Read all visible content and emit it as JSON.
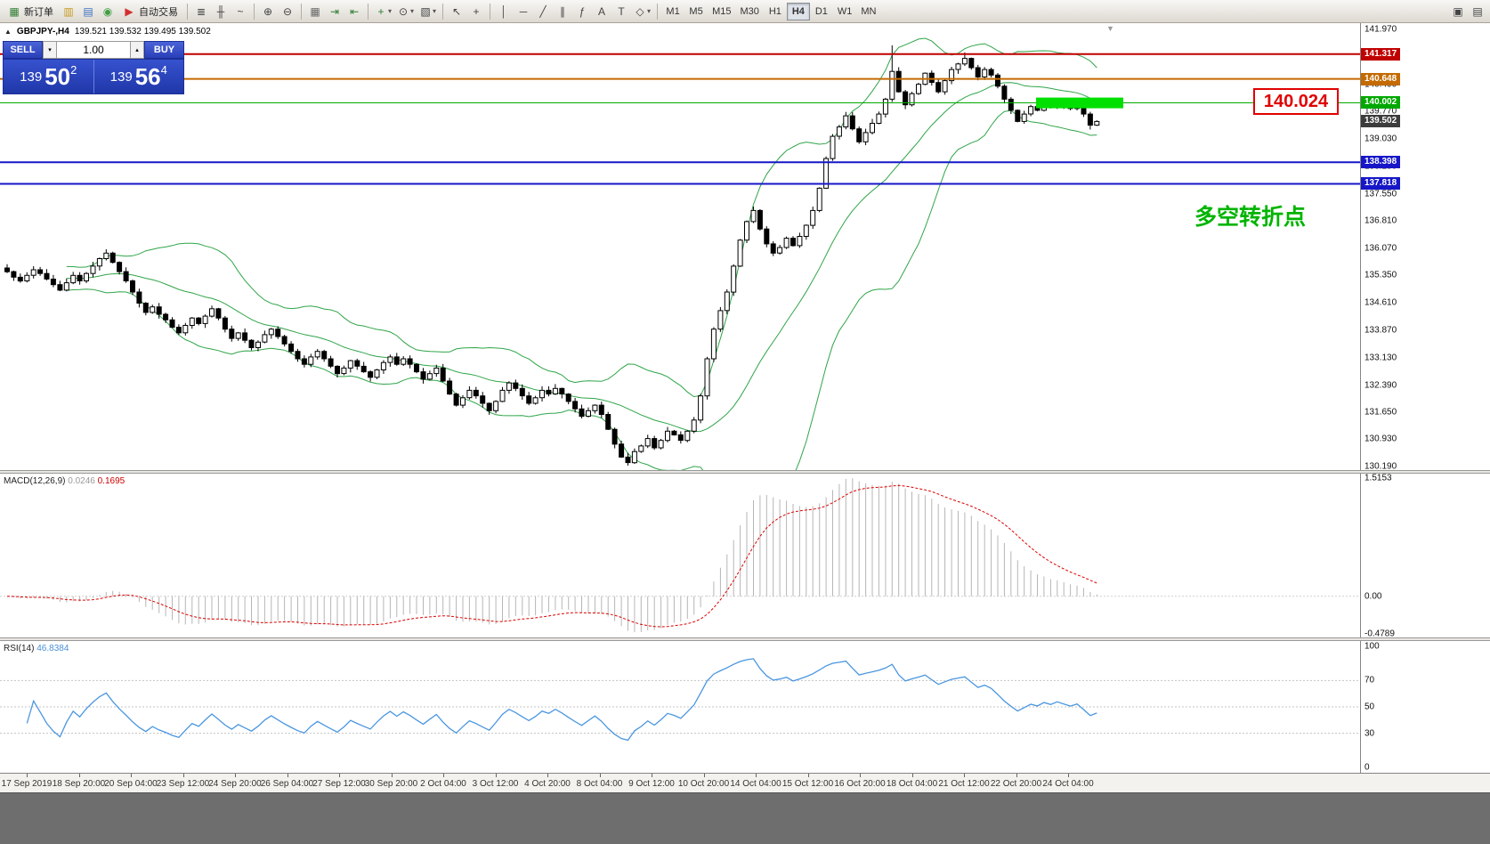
{
  "toolbar": {
    "items": [
      {
        "kind": "button",
        "name": "new-order",
        "glyph": "▦",
        "color": "#2e7d32",
        "label": "新订单"
      },
      {
        "kind": "icon",
        "name": "charts",
        "glyph": "▥",
        "color": "#c79a1e"
      },
      {
        "kind": "icon",
        "name": "market-watch",
        "glyph": "▤",
        "color": "#3b6fc0"
      },
      {
        "kind": "icon",
        "name": "navigator",
        "glyph": "◉",
        "color": "#3f9d44"
      },
      {
        "kind": "button",
        "name": "auto-trading",
        "glyph": "▶",
        "color": "#d32f2f",
        "label": "自动交易"
      },
      {
        "kind": "sep"
      },
      {
        "kind": "icon",
        "name": "bar-chart",
        "glyph": "≣",
        "color": "#444444"
      },
      {
        "kind": "icon",
        "name": "candlestick-chart",
        "glyph": "╫",
        "color": "#444444"
      },
      {
        "kind": "icon",
        "name": "line-chart",
        "glyph": "~",
        "color": "#444444"
      },
      {
        "kind": "sep"
      },
      {
        "kind": "icon",
        "name": "zoom-in",
        "glyph": "⊕",
        "color": "#444444"
      },
      {
        "kind": "icon",
        "name": "zoom-out",
        "glyph": "⊖",
        "color": "#444444"
      },
      {
        "kind": "sep"
      },
      {
        "kind": "icon",
        "name": "tile-windows",
        "glyph": "▦",
        "color": "#666666"
      },
      {
        "kind": "icon",
        "name": "auto-scroll",
        "glyph": "⇥",
        "color": "#2e7d32"
      },
      {
        "kind": "icon",
        "name": "chart-shift",
        "glyph": "⇤",
        "color": "#2e7d32"
      },
      {
        "kind": "sep"
      },
      {
        "kind": "icon",
        "name": "indicators",
        "glyph": "+",
        "color": "#2e7d32",
        "dropdown": true
      },
      {
        "kind": "icon",
        "name": "periods",
        "glyph": "⊙",
        "color": "#444444",
        "dropdown": true
      },
      {
        "kind": "icon",
        "name": "templates",
        "glyph": "▧",
        "color": "#444444",
        "dropdown": true
      },
      {
        "kind": "sep"
      },
      {
        "kind": "icon",
        "name": "cursor",
        "glyph": "↖",
        "color": "#444444"
      },
      {
        "kind": "icon",
        "name": "crosshair",
        "glyph": "+",
        "color": "#444444"
      },
      {
        "kind": "sep"
      },
      {
        "kind": "icon",
        "name": "vertical-line",
        "glyph": "│",
        "color": "#444444"
      },
      {
        "kind": "icon",
        "name": "horizontal-line",
        "glyph": "─",
        "color": "#444444"
      },
      {
        "kind": "icon",
        "name": "trendline",
        "glyph": "╱",
        "color": "#444444"
      },
      {
        "kind": "icon",
        "name": "equidistant-channel",
        "glyph": "∥",
        "color": "#444444"
      },
      {
        "kind": "icon",
        "name": "fibonacci",
        "glyph": "ƒ",
        "color": "#444444"
      },
      {
        "kind": "icon",
        "name": "text",
        "glyph": "A",
        "color": "#444444"
      },
      {
        "kind": "icon",
        "name": "text-label",
        "glyph": "T",
        "color": "#444444"
      },
      {
        "kind": "icon",
        "name": "arrows",
        "glyph": "◇",
        "color": "#444444",
        "dropdown": true
      },
      {
        "kind": "sep"
      },
      {
        "kind": "timeframes"
      },
      {
        "kind": "spacer"
      },
      {
        "kind": "icon",
        "name": "new-window",
        "glyph": "▣",
        "color": "#444444"
      },
      {
        "kind": "icon",
        "name": "print",
        "glyph": "▤",
        "color": "#444444"
      }
    ],
    "timeframes": [
      "M1",
      "M5",
      "M15",
      "M30",
      "H1",
      "H4",
      "D1",
      "W1",
      "MN"
    ],
    "active_timeframe": "H4"
  },
  "chart": {
    "title": "GBPJPY-,H4",
    "ohlc": "139.521 139.532 139.495 139.502"
  },
  "one_click": {
    "sell_label": "SELL",
    "buy_label": "BUY",
    "volume": "1.00",
    "spin_up": "▴",
    "spin_down": "▾",
    "sell_price": {
      "base": "139",
      "big": "50",
      "sup": "2"
    },
    "buy_price": {
      "base": "139",
      "big": "56",
      "sup": "4"
    }
  },
  "icons": {
    "collapse": "▲",
    "shift_marker": "▼"
  },
  "annotations": {
    "price_box": "140.024",
    "note": "多空转折点"
  },
  "hlines": [
    {
      "value": 141.317,
      "label": "141.317",
      "color": "#c00000",
      "width": 2
    },
    {
      "value": 140.648,
      "label": "140.648",
      "color": "#c46a00",
      "width": 2
    },
    {
      "value": 140.002,
      "label": "140.002",
      "color": "#00a800",
      "width": 1
    },
    {
      "value": 138.398,
      "label": "138.398",
      "color": "#1616c8",
      "width": 2
    },
    {
      "value": 137.818,
      "label": "137.818",
      "color": "#1616c8",
      "width": 2
    }
  ],
  "current_price": {
    "value": 139.502,
    "label": "139.502",
    "color": "#3c3c3c"
  },
  "highlight": {
    "value": 140.0,
    "color": "#00e000"
  },
  "price_axis": {
    "ticks": [
      "141.970",
      "141.230",
      "140.490",
      "139.770",
      "139.030",
      "138.290",
      "137.550",
      "136.810",
      "136.070",
      "135.350",
      "134.610",
      "133.870",
      "133.130",
      "132.390",
      "131.650",
      "130.930",
      "130.190"
    ]
  },
  "macd": {
    "label": "MACD(12,26,9)",
    "value_main": "0.0246",
    "value_signal": "0.1695",
    "ticks": [
      "1.5153",
      "0.00",
      "-0.4789"
    ],
    "tick_values": [
      1.5153,
      0,
      -0.4789
    ]
  },
  "rsi": {
    "label": "RSI(14)",
    "value": "46.8384",
    "ticks": [
      "100",
      "70",
      "50",
      "30",
      "0"
    ],
    "tick_values": [
      100,
      70,
      50,
      30,
      0
    ],
    "levels": [
      70,
      50,
      30
    ]
  },
  "time_axis": {
    "labels": [
      "17 Sep 2019",
      "18 Sep 20:00",
      "20 Sep 04:00",
      "23 Sep 12:00",
      "24 Sep 20:00",
      "26 Sep 04:00",
      "27 Sep 12:00",
      "30 Sep 20:00",
      "2 Oct 04:00",
      "3 Oct 12:00",
      "4 Oct 20:00",
      "8 Oct 04:00",
      "9 Oct 12:00",
      "10 Oct 20:00",
      "14 Oct 04:00",
      "15 Oct 12:00",
      "16 Oct 20:00",
      "18 Oct 04:00",
      "21 Oct 12:00",
      "22 Oct 20:00",
      "24 Oct 04:00"
    ]
  },
  "chart_data": {
    "type": "candlestick",
    "symbol": "GBPJPY",
    "timeframe": "H4",
    "open_first": 135.55,
    "closes": [
      135.45,
      135.3,
      135.2,
      135.35,
      135.5,
      135.4,
      135.25,
      135.1,
      134.95,
      135.15,
      135.35,
      135.2,
      135.4,
      135.6,
      135.8,
      135.95,
      135.7,
      135.45,
      135.2,
      134.9,
      134.6,
      134.35,
      134.5,
      134.3,
      134.15,
      133.95,
      133.8,
      134.0,
      134.2,
      134.05,
      134.25,
      134.45,
      134.2,
      133.9,
      133.65,
      133.8,
      133.6,
      133.4,
      133.55,
      133.75,
      133.9,
      133.7,
      133.5,
      133.3,
      133.1,
      132.95,
      133.15,
      133.3,
      133.1,
      132.9,
      132.7,
      132.85,
      133.05,
      132.9,
      132.75,
      132.6,
      132.8,
      133.0,
      133.15,
      132.95,
      133.1,
      132.95,
      132.75,
      132.55,
      132.7,
      132.85,
      132.5,
      132.15,
      131.85,
      132.05,
      132.25,
      132.1,
      131.9,
      131.7,
      131.95,
      132.25,
      132.45,
      132.3,
      132.1,
      131.9,
      132.05,
      132.25,
      132.15,
      132.3,
      132.15,
      131.95,
      131.75,
      131.55,
      131.7,
      131.85,
      131.6,
      131.2,
      130.8,
      130.45,
      130.3,
      130.6,
      130.75,
      130.95,
      130.7,
      130.9,
      131.15,
      131.05,
      130.9,
      131.15,
      131.45,
      132.1,
      133.1,
      133.9,
      134.4,
      134.9,
      135.6,
      136.3,
      136.8,
      137.1,
      136.6,
      136.2,
      135.95,
      136.1,
      136.35,
      136.15,
      136.4,
      136.7,
      137.1,
      137.7,
      138.5,
      139.1,
      139.35,
      139.65,
      139.3,
      138.95,
      139.2,
      139.45,
      139.7,
      140.1,
      140.85,
      140.3,
      139.95,
      140.25,
      140.5,
      140.8,
      140.55,
      140.3,
      140.6,
      140.9,
      141.05,
      141.2,
      140.95,
      140.7,
      140.9,
      140.75,
      140.45,
      140.1,
      139.8,
      139.5,
      139.7,
      139.9,
      139.8,
      140.0,
      139.9,
      140.05,
      139.95,
      139.85,
      139.95,
      139.7,
      139.4,
      139.5
    ],
    "high_overrides": {
      "134": 141.55,
      "145": 141.36
    },
    "low_overrides": {
      "94": 130.22
    },
    "y_range": [
      130.1,
      142.15
    ],
    "indicators": {
      "bollinger_period": 20,
      "bollinger_deviation": 2,
      "macd": [
        12,
        26,
        9
      ],
      "rsi_period": 14
    }
  }
}
